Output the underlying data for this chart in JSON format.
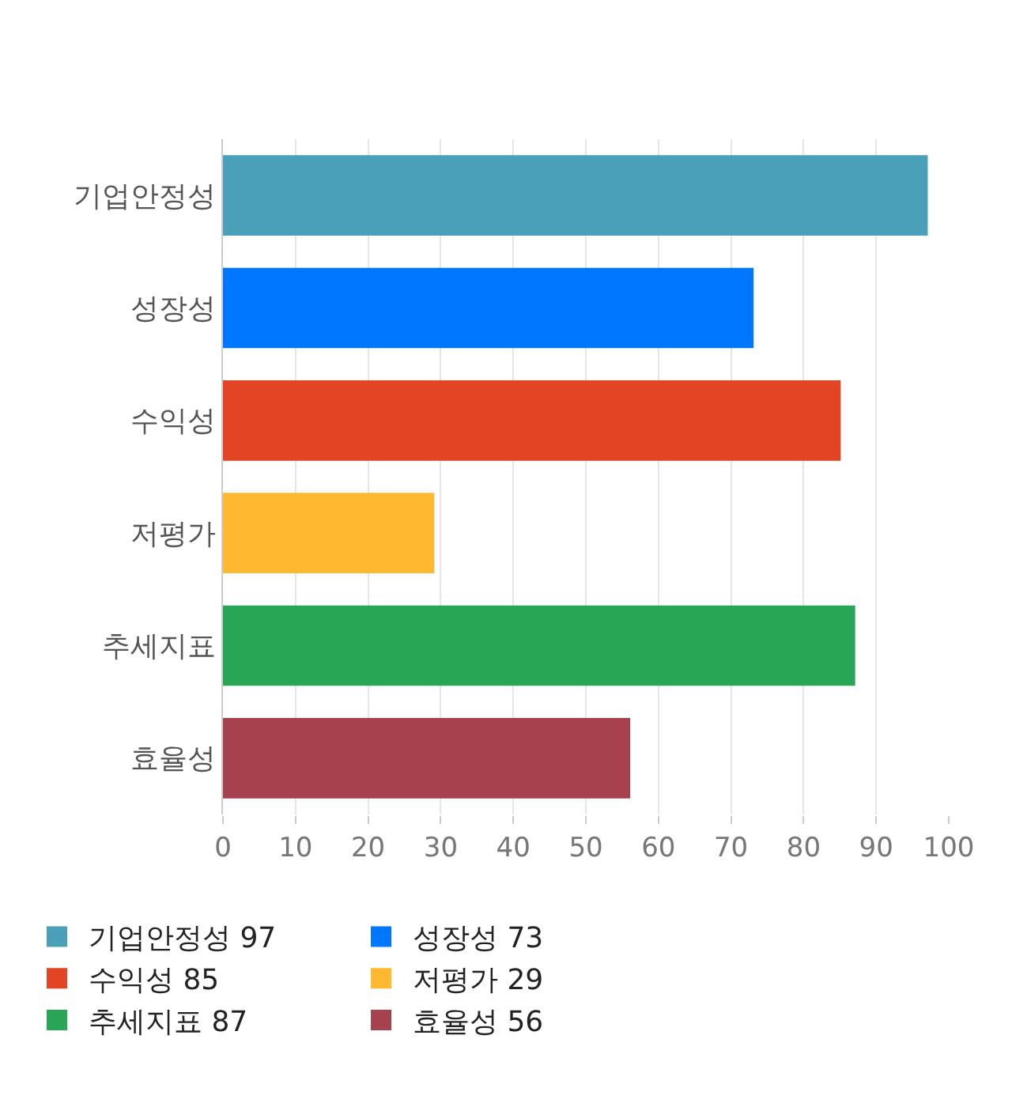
{
  "chart_data": {
    "type": "bar",
    "orientation": "horizontal",
    "categories": [
      "기업안정성",
      "성장성",
      "수익성",
      "저평가",
      "추세지표",
      "효율성"
    ],
    "series": [
      {
        "name": "기업안정성 97",
        "color": "#4aa0b9",
        "values": [
          97,
          null,
          null,
          null,
          null,
          null
        ]
      },
      {
        "name": "성장성 73",
        "color": "#0077ff",
        "values": [
          null,
          73,
          null,
          null,
          null,
          null
        ]
      },
      {
        "name": "수익성 85",
        "color": "#e24424",
        "values": [
          null,
          null,
          85,
          null,
          null,
          null
        ]
      },
      {
        "name": "저평가 29",
        "color": "#ffb830",
        "values": [
          null,
          null,
          null,
          29,
          null,
          null
        ]
      },
      {
        "name": "추세지표 87",
        "color": "#28a655",
        "values": [
          null,
          null,
          null,
          null,
          87,
          null
        ]
      },
      {
        "name": "효율성 56",
        "color": "#a5424d",
        "values": [
          null,
          null,
          null,
          null,
          null,
          56
        ]
      }
    ],
    "xlim": [
      0,
      100
    ],
    "xticks": [
      0,
      10,
      20,
      30,
      40,
      50,
      60,
      70,
      80,
      90,
      100
    ],
    "grid": "x",
    "legend": "bottom"
  }
}
